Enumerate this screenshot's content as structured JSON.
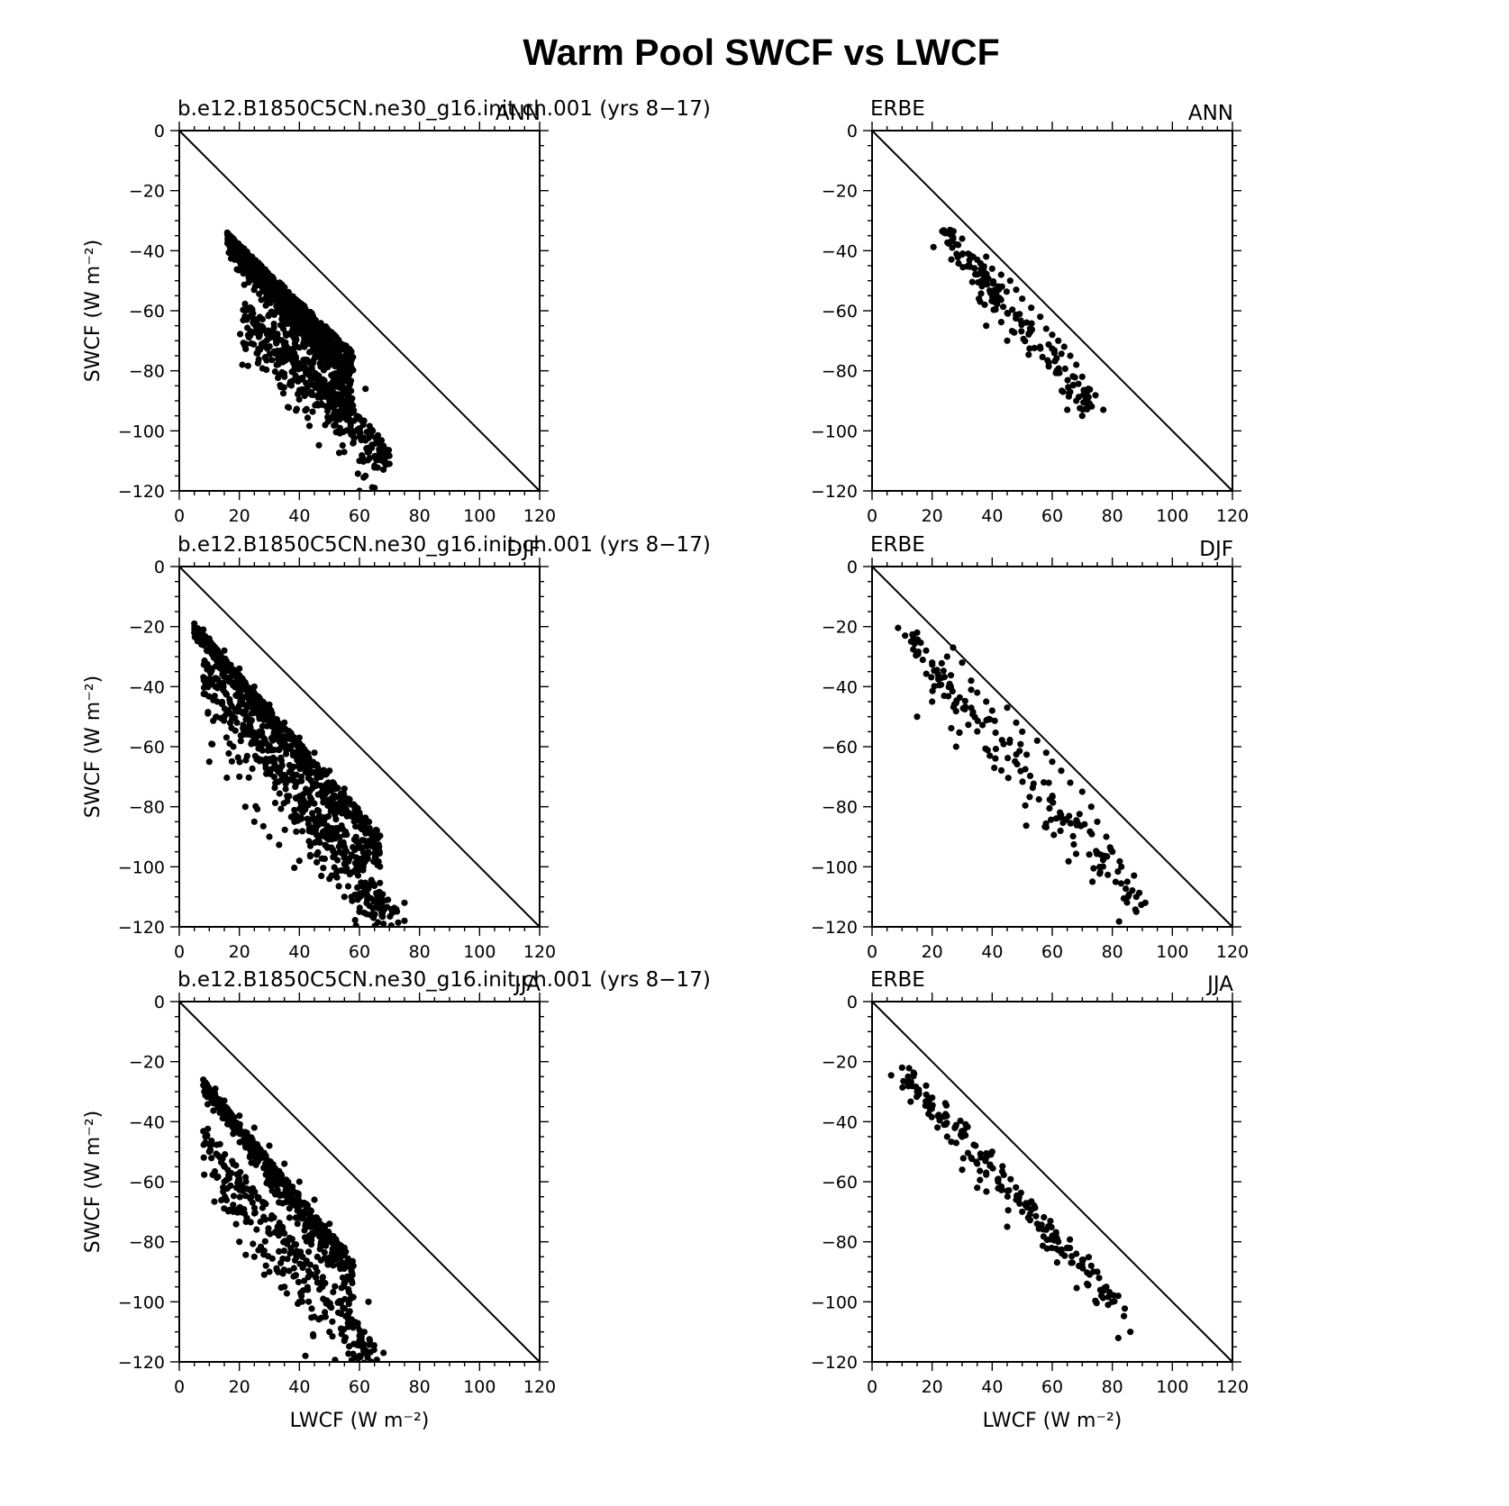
{
  "title": "Warm Pool SWCF vs LWCF",
  "colors": {
    "marker": "#000000",
    "frame": "#000000",
    "background": "#ffffff"
  },
  "chart_data": [
    {
      "type": "scatter",
      "left_label": "b.e12.B1850C5CN.ne30_g16.init.ch.001 (yrs 8−17)",
      "right_label": "ANN",
      "ylabel": "SWCF (W m⁻²)",
      "xlabel": "",
      "xlim": [
        0,
        120
      ],
      "ylim": [
        -120,
        0
      ],
      "xticks": [
        0,
        20,
        40,
        60,
        80,
        100,
        120
      ],
      "yticks": [
        0,
        -20,
        -40,
        -60,
        -80,
        -100,
        -120
      ],
      "reference_line": [
        [
          0,
          0
        ],
        [
          120,
          -120
        ]
      ],
      "points_total": 2800,
      "points_sample": [
        [
          16,
          -34
        ],
        [
          18,
          -36
        ],
        [
          22,
          -42
        ],
        [
          26,
          -50
        ],
        [
          30,
          -55
        ],
        [
          35,
          -60
        ],
        [
          40,
          -64
        ],
        [
          45,
          -68
        ],
        [
          50,
          -75
        ],
        [
          55,
          -80
        ],
        [
          22,
          -60
        ],
        [
          25,
          -63
        ],
        [
          30,
          -68
        ],
        [
          33,
          -75
        ],
        [
          38,
          -80
        ],
        [
          45,
          -85
        ],
        [
          50,
          -90
        ],
        [
          53,
          -100
        ],
        [
          58,
          -104
        ],
        [
          60,
          -110
        ],
        [
          62,
          -115
        ],
        [
          68,
          -105
        ],
        [
          70,
          -111
        ],
        [
          60,
          -120
        ],
        [
          65,
          -119
        ],
        [
          21,
          -78
        ],
        [
          35,
          -82
        ],
        [
          62,
          -86
        ]
      ]
    },
    {
      "type": "scatter",
      "left_label": "ERBE",
      "right_label": "ANN",
      "ylabel": "",
      "xlabel": "",
      "xlim": [
        0,
        120
      ],
      "ylim": [
        -120,
        0
      ],
      "xticks": [
        0,
        20,
        40,
        60,
        80,
        100,
        120
      ],
      "yticks": [
        0,
        -20,
        -40,
        -60,
        -80,
        -100,
        -120
      ],
      "reference_line": [
        [
          0,
          0
        ],
        [
          120,
          -120
        ]
      ],
      "points_total": 180,
      "points_sample": [
        [
          24,
          -34
        ],
        [
          27,
          -36
        ],
        [
          30,
          -36
        ],
        [
          32,
          -41
        ],
        [
          35,
          -43
        ],
        [
          38,
          -42
        ],
        [
          40,
          -46
        ],
        [
          43,
          -48
        ],
        [
          46,
          -50
        ],
        [
          48,
          -53
        ],
        [
          50,
          -56
        ],
        [
          53,
          -59
        ],
        [
          56,
          -62
        ],
        [
          58,
          -66
        ],
        [
          60,
          -68
        ],
        [
          62,
          -70
        ],
        [
          64,
          -72
        ],
        [
          66,
          -75
        ],
        [
          68,
          -78
        ],
        [
          70,
          -82
        ],
        [
          72,
          -86
        ],
        [
          68,
          -90
        ],
        [
          65,
          -93
        ],
        [
          70,
          -95
        ],
        [
          77,
          -93
        ],
        [
          38,
          -65
        ],
        [
          45,
          -70
        ],
        [
          36,
          -57
        ]
      ]
    },
    {
      "type": "scatter",
      "left_label": "b.e12.B1850C5CN.ne30_g16.init.ch.001 (yrs 8−17)",
      "right_label": "DJF",
      "ylabel": "SWCF (W m⁻²)",
      "xlabel": "",
      "xlim": [
        0,
        120
      ],
      "ylim": [
        -120,
        0
      ],
      "xticks": [
        0,
        20,
        40,
        60,
        80,
        100,
        120
      ],
      "yticks": [
        0,
        -20,
        -40,
        -60,
        -80,
        -100,
        -120
      ],
      "reference_line": [
        [
          0,
          0
        ],
        [
          120,
          -120
        ]
      ],
      "points_total": 2000,
      "points_sample": [
        [
          5,
          -19
        ],
        [
          8,
          -21
        ],
        [
          10,
          -24
        ],
        [
          15,
          -28
        ],
        [
          20,
          -34
        ],
        [
          25,
          -40
        ],
        [
          30,
          -46
        ],
        [
          35,
          -52
        ],
        [
          40,
          -57
        ],
        [
          45,
          -62
        ],
        [
          50,
          -68
        ],
        [
          55,
          -74
        ],
        [
          60,
          -82
        ],
        [
          65,
          -90
        ],
        [
          12,
          -40
        ],
        [
          15,
          -50
        ],
        [
          18,
          -60
        ],
        [
          20,
          -70
        ],
        [
          22,
          -80
        ],
        [
          25,
          -85
        ],
        [
          30,
          -90
        ],
        [
          40,
          -98
        ],
        [
          50,
          -104
        ],
        [
          55,
          -110
        ],
        [
          60,
          -115
        ],
        [
          68,
          -119
        ],
        [
          75,
          -118
        ],
        [
          75,
          -112
        ],
        [
          10,
          -65
        ]
      ]
    },
    {
      "type": "scatter",
      "left_label": "ERBE",
      "right_label": "DJF",
      "ylabel": "",
      "xlabel": "",
      "xlim": [
        0,
        120
      ],
      "ylim": [
        -120,
        0
      ],
      "xticks": [
        0,
        20,
        40,
        60,
        80,
        100,
        120
      ],
      "yticks": [
        0,
        -20,
        -40,
        -60,
        -80,
        -100,
        -120
      ],
      "reference_line": [
        [
          0,
          0
        ],
        [
          120,
          -120
        ]
      ],
      "points_total": 180,
      "points_sample": [
        [
          11,
          -23
        ],
        [
          13,
          -25
        ],
        [
          15,
          -22
        ],
        [
          18,
          -28
        ],
        [
          20,
          -32
        ],
        [
          22,
          -36
        ],
        [
          25,
          -30
        ],
        [
          27,
          -27
        ],
        [
          30,
          -32
        ],
        [
          33,
          -38
        ],
        [
          35,
          -42
        ],
        [
          38,
          -45
        ],
        [
          40,
          -48
        ],
        [
          43,
          -40
        ],
        [
          45,
          -47
        ],
        [
          48,
          -52
        ],
        [
          50,
          -55
        ],
        [
          55,
          -58
        ],
        [
          58,
          -62
        ],
        [
          60,
          -65
        ],
        [
          63,
          -68
        ],
        [
          66,
          -72
        ],
        [
          70,
          -75
        ],
        [
          73,
          -80
        ],
        [
          75,
          -85
        ],
        [
          78,
          -90
        ],
        [
          80,
          -95
        ],
        [
          83,
          -100
        ],
        [
          85,
          -105
        ],
        [
          88,
          -110
        ],
        [
          88,
          -115
        ],
        [
          91,
          -112
        ],
        [
          15,
          -50
        ],
        [
          20,
          -45
        ],
        [
          28,
          -60
        ]
      ]
    },
    {
      "type": "scatter",
      "left_label": "b.e12.B1850C5CN.ne30_g16.init.ch.001 (yrs 8−17)",
      "right_label": "JJA",
      "ylabel": "SWCF (W m⁻²)",
      "xlabel": "LWCF (W m⁻²)",
      "xlim": [
        0,
        120
      ],
      "ylim": [
        -120,
        0
      ],
      "xticks": [
        0,
        20,
        40,
        60,
        80,
        100,
        120
      ],
      "yticks": [
        0,
        -20,
        -40,
        -60,
        -80,
        -100,
        -120
      ],
      "reference_line": [
        [
          0,
          0
        ],
        [
          120,
          -120
        ]
      ],
      "points_total": 1500,
      "points_sample": [
        [
          8,
          -26
        ],
        [
          10,
          -30
        ],
        [
          12,
          -29
        ],
        [
          15,
          -33
        ],
        [
          20,
          -38
        ],
        [
          25,
          -42
        ],
        [
          30,
          -48
        ],
        [
          35,
          -54
        ],
        [
          40,
          -60
        ],
        [
          45,
          -66
        ],
        [
          50,
          -74
        ],
        [
          55,
          -82
        ],
        [
          58,
          -88
        ],
        [
          10,
          -50
        ],
        [
          15,
          -60
        ],
        [
          18,
          -70
        ],
        [
          20,
          -80
        ],
        [
          25,
          -85
        ],
        [
          30,
          -90
        ],
        [
          35,
          -95
        ],
        [
          40,
          -100
        ],
        [
          45,
          -105
        ],
        [
          50,
          -110
        ],
        [
          55,
          -113
        ],
        [
          60,
          -118
        ],
        [
          68,
          -117
        ],
        [
          63,
          -100
        ],
        [
          42,
          -118
        ]
      ]
    },
    {
      "type": "scatter",
      "left_label": "ERBE",
      "right_label": "JJA",
      "ylabel": "",
      "xlabel": "LWCF (W m⁻²)",
      "xlim": [
        0,
        120
      ],
      "ylim": [
        -120,
        0
      ],
      "xticks": [
        0,
        20,
        40,
        60,
        80,
        100,
        120
      ],
      "yticks": [
        0,
        -20,
        -40,
        -60,
        -80,
        -100,
        -120
      ],
      "reference_line": [
        [
          0,
          0
        ],
        [
          120,
          -120
        ]
      ],
      "points_total": 180,
      "points_sample": [
        [
          10,
          -22
        ],
        [
          12,
          -25
        ],
        [
          14,
          -24
        ],
        [
          15,
          -30
        ],
        [
          18,
          -28
        ],
        [
          20,
          -32
        ],
        [
          22,
          -38
        ],
        [
          24,
          -41
        ],
        [
          25,
          -45
        ],
        [
          30,
          -56
        ],
        [
          33,
          -52
        ],
        [
          35,
          -54
        ],
        [
          38,
          -57
        ],
        [
          40,
          -50
        ],
        [
          42,
          -60
        ],
        [
          45,
          -63
        ],
        [
          48,
          -66
        ],
        [
          50,
          -70
        ],
        [
          52,
          -72
        ],
        [
          55,
          -74
        ],
        [
          58,
          -76
        ],
        [
          60,
          -78
        ],
        [
          62,
          -80
        ],
        [
          65,
          -82
        ],
        [
          68,
          -84
        ],
        [
          70,
          -86
        ],
        [
          73,
          -88
        ],
        [
          75,
          -90
        ],
        [
          78,
          -95
        ],
        [
          80,
          -100
        ],
        [
          82,
          -98
        ],
        [
          86,
          -110
        ],
        [
          35,
          -62
        ],
        [
          45,
          -75
        ]
      ]
    }
  ]
}
